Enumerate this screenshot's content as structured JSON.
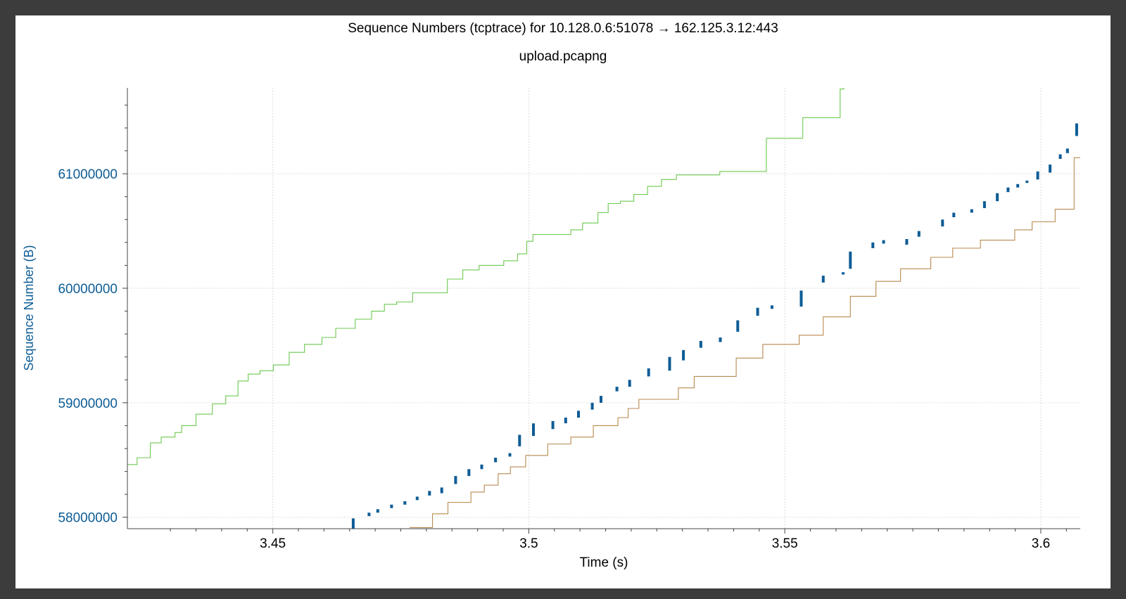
{
  "chart_data": {
    "type": "line",
    "title": "Sequence Numbers (tcptrace) for 10.128.0.6:51078 → 162.125.3.12:443",
    "subtitle": "upload.pcapng",
    "xlabel": "Time (s)",
    "ylabel": "Sequence Number (B)",
    "xlim": [
      3.4216,
      3.6077
    ],
    "ylim": [
      57900000,
      61750000
    ],
    "grid": true,
    "x_ticks": [
      "3.45",
      "3.5",
      "3.55",
      "3.6"
    ],
    "x_tick_values": [
      3.45,
      3.5,
      3.55,
      3.6
    ],
    "y_ticks": [
      "58000000",
      "59000000",
      "60000000",
      "61000000"
    ],
    "y_tick_values": [
      58000000,
      59000000,
      60000000,
      61000000
    ],
    "colors": {
      "receive_window": "#6bc94f",
      "ack": "#b8894f",
      "segments": "#0d5c96",
      "axis_label": "#0d5c96"
    },
    "series": [
      {
        "style": "step",
        "color": "#6bc94f",
        "points": [
          [
            3.4216,
            58460000
          ],
          [
            3.4235,
            58520000
          ],
          [
            3.4261,
            58650000
          ],
          [
            3.4282,
            58700000
          ],
          [
            3.4309,
            58740000
          ],
          [
            3.4322,
            58800000
          ],
          [
            3.435,
            58900000
          ],
          [
            3.4382,
            58990000
          ],
          [
            3.4408,
            59060000
          ],
          [
            3.4432,
            59190000
          ],
          [
            3.4452,
            59250000
          ],
          [
            3.4475,
            59280000
          ],
          [
            3.4501,
            59330000
          ],
          [
            3.4532,
            59440000
          ],
          [
            3.4562,
            59510000
          ],
          [
            3.4596,
            59570000
          ],
          [
            3.4623,
            59650000
          ],
          [
            3.4661,
            59730000
          ],
          [
            3.4693,
            59800000
          ],
          [
            3.4718,
            59860000
          ],
          [
            3.4742,
            59880000
          ],
          [
            3.4773,
            59960000
          ],
          [
            3.4841,
            60080000
          ],
          [
            3.4871,
            60160000
          ],
          [
            3.4903,
            60200000
          ],
          [
            3.4951,
            60240000
          ],
          [
            3.4978,
            60300000
          ],
          [
            3.4996,
            60410000
          ],
          [
            3.5008,
            60470000
          ],
          [
            3.5082,
            60510000
          ],
          [
            3.5105,
            60570000
          ],
          [
            3.5135,
            60660000
          ],
          [
            3.5155,
            60740000
          ],
          [
            3.5179,
            60760000
          ],
          [
            3.5205,
            60820000
          ],
          [
            3.5232,
            60890000
          ],
          [
            3.5259,
            60950000
          ],
          [
            3.5288,
            60990000
          ],
          [
            3.5373,
            61020000
          ],
          [
            3.5464,
            61310000
          ],
          [
            3.5535,
            61490000
          ],
          [
            3.5608,
            61740000
          ],
          [
            3.5615,
            61750000
          ]
        ]
      },
      {
        "style": "step",
        "color": "#b8894f",
        "points": [
          [
            3.4767,
            57910000
          ],
          [
            3.4812,
            58030000
          ],
          [
            3.4842,
            58130000
          ],
          [
            3.4887,
            58220000
          ],
          [
            3.4913,
            58280000
          ],
          [
            3.494,
            58380000
          ],
          [
            3.4964,
            58440000
          ],
          [
            3.4994,
            58540000
          ],
          [
            3.5037,
            58640000
          ],
          [
            3.5082,
            58700000
          ],
          [
            3.5126,
            58800000
          ],
          [
            3.5174,
            58870000
          ],
          [
            3.5194,
            58950000
          ],
          [
            3.5215,
            59030000
          ],
          [
            3.5292,
            59130000
          ],
          [
            3.5323,
            59230000
          ],
          [
            3.5405,
            59390000
          ],
          [
            3.5457,
            59510000
          ],
          [
            3.5528,
            59590000
          ],
          [
            3.5575,
            59750000
          ],
          [
            3.5628,
            59930000
          ],
          [
            3.5678,
            60060000
          ],
          [
            3.5726,
            60170000
          ],
          [
            3.5785,
            60270000
          ],
          [
            3.5828,
            60350000
          ],
          [
            3.5882,
            60420000
          ],
          [
            3.5949,
            60510000
          ],
          [
            3.5983,
            60580000
          ],
          [
            3.6028,
            60690000
          ],
          [
            3.6065,
            61140000
          ],
          [
            3.6077,
            61140000
          ]
        ]
      }
    ],
    "segments": {
      "color": "#0d5c96",
      "bars": [
        [
          3.4657,
          57900000,
          57990000
        ],
        [
          3.4688,
          58010000,
          58040000
        ],
        [
          3.4705,
          58040000,
          58070000
        ],
        [
          3.4732,
          58080000,
          58110000
        ],
        [
          3.4758,
          58110000,
          58140000
        ],
        [
          3.4782,
          58150000,
          58180000
        ],
        [
          3.4806,
          58190000,
          58230000
        ],
        [
          3.483,
          58210000,
          58260000
        ],
        [
          3.4857,
          58290000,
          58360000
        ],
        [
          3.4883,
          58360000,
          58420000
        ],
        [
          3.4908,
          58420000,
          58460000
        ],
        [
          3.4935,
          58480000,
          58520000
        ],
        [
          3.4963,
          58530000,
          58560000
        ],
        [
          3.4982,
          58620000,
          58720000
        ],
        [
          3.5009,
          58710000,
          58820000
        ],
        [
          3.5047,
          58770000,
          58840000
        ],
        [
          3.5072,
          58820000,
          58870000
        ],
        [
          3.5097,
          58870000,
          58930000
        ],
        [
          3.5124,
          58940000,
          59000000
        ],
        [
          3.5141,
          59000000,
          59060000
        ],
        [
          3.5172,
          59100000,
          59140000
        ],
        [
          3.5197,
          59140000,
          59200000
        ],
        [
          3.5234,
          59230000,
          59300000
        ],
        [
          3.5275,
          59280000,
          59400000
        ],
        [
          3.5302,
          59370000,
          59460000
        ],
        [
          3.5336,
          59480000,
          59540000
        ],
        [
          3.5374,
          59530000,
          59570000
        ],
        [
          3.5408,
          59620000,
          59720000
        ],
        [
          3.5447,
          59760000,
          59830000
        ],
        [
          3.5475,
          59820000,
          59850000
        ],
        [
          3.5532,
          59840000,
          59980000
        ],
        [
          3.5575,
          60050000,
          60110000
        ],
        [
          3.5614,
          60120000,
          60140000
        ],
        [
          3.5628,
          60170000,
          60320000
        ],
        [
          3.5672,
          60350000,
          60400000
        ],
        [
          3.5693,
          60390000,
          60420000
        ],
        [
          3.5738,
          60380000,
          60430000
        ],
        [
          3.5762,
          60450000,
          60500000
        ],
        [
          3.5808,
          60540000,
          60600000
        ],
        [
          3.583,
          60620000,
          60660000
        ],
        [
          3.5865,
          60660000,
          60690000
        ],
        [
          3.589,
          60700000,
          60760000
        ],
        [
          3.5915,
          60760000,
          60830000
        ],
        [
          3.5936,
          60840000,
          60880000
        ],
        [
          3.5955,
          60880000,
          60910000
        ],
        [
          3.5973,
          60920000,
          60940000
        ],
        [
          3.5994,
          60950000,
          61020000
        ],
        [
          3.6018,
          61010000,
          61080000
        ],
        [
          3.6038,
          61130000,
          61170000
        ],
        [
          3.6052,
          61180000,
          61220000
        ],
        [
          3.607,
          61330000,
          61440000
        ]
      ]
    }
  }
}
